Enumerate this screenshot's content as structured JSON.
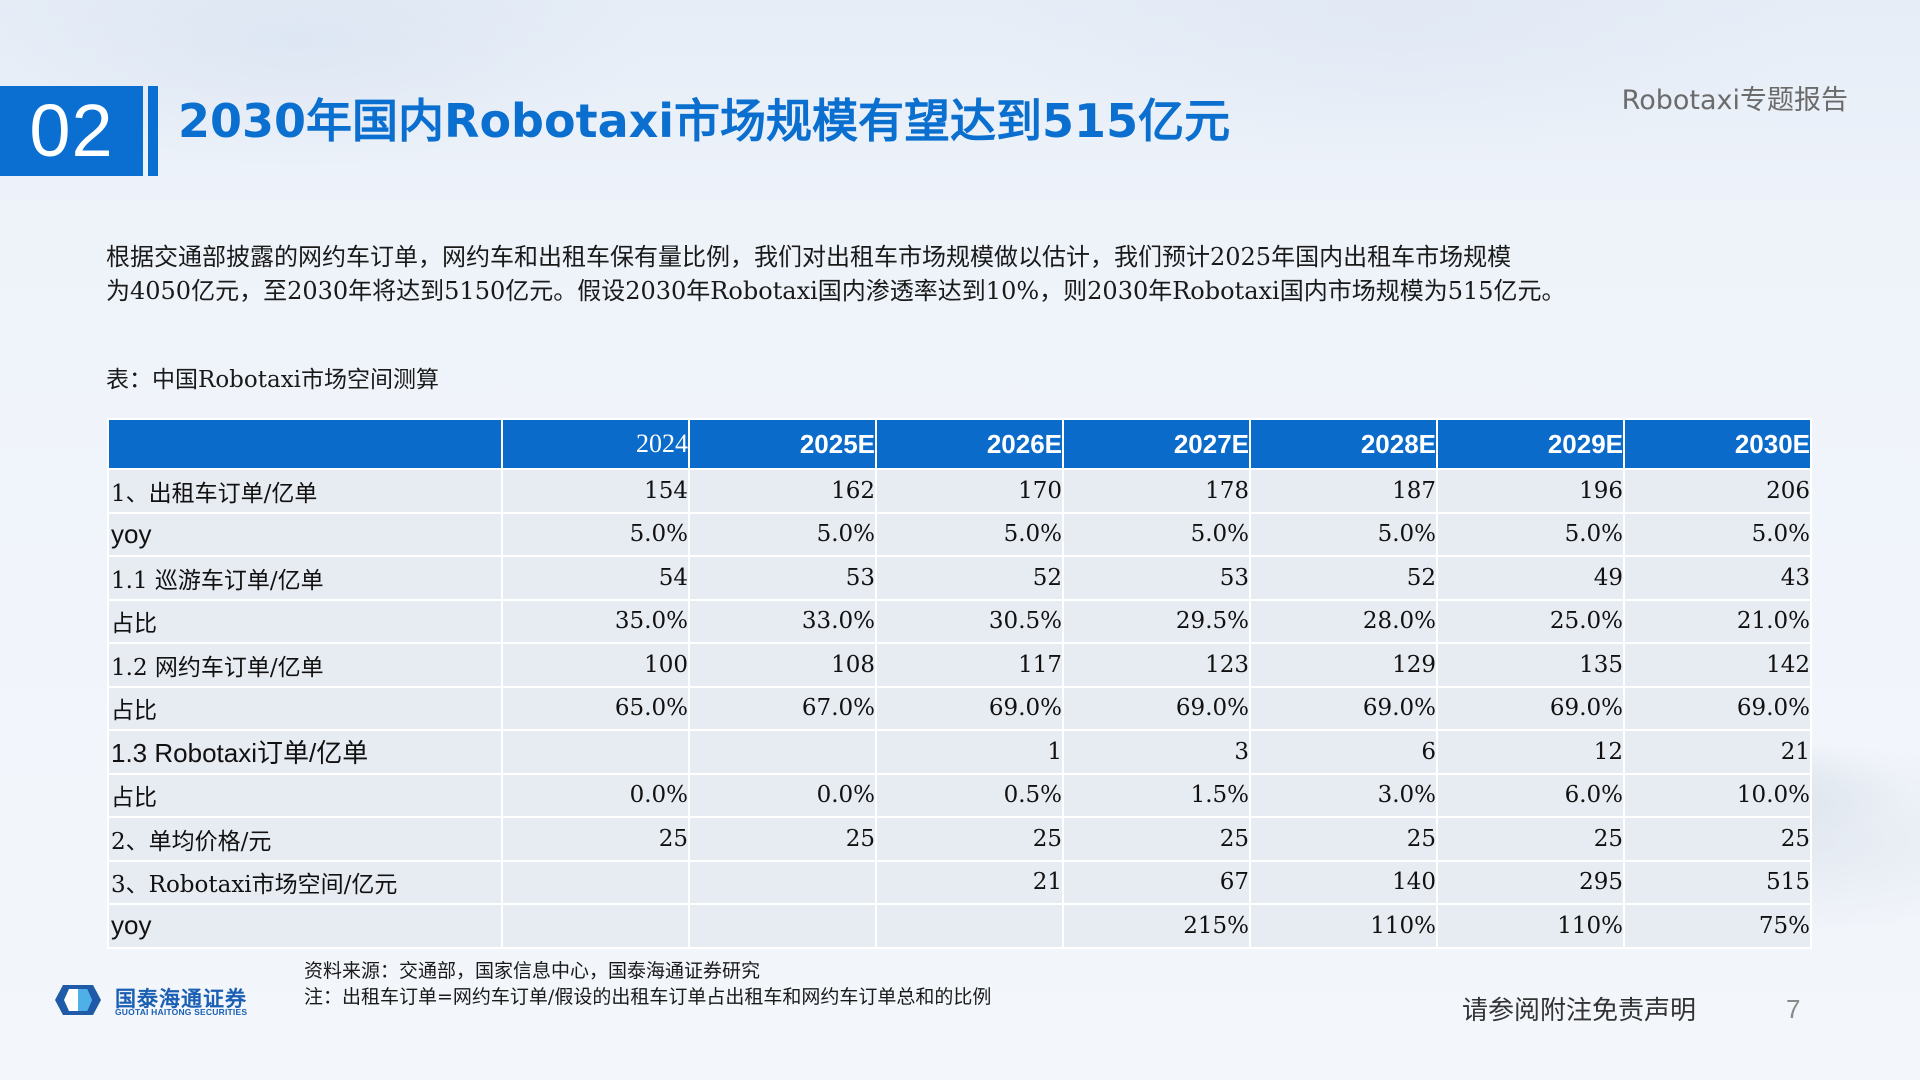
{
  "header": {
    "section_number": "02",
    "title": "2030年国内Robotaxi市场规模有望达到515亿元",
    "report_tag": "Robotaxi专题报告"
  },
  "intro": {
    "line1": "根据交通部披露的网约车订单，网约车和出租车保有量比例，我们对出租车市场规模做以估计，我们预计2025年国内出租车市场规模",
    "line2": "为4050亿元，至2030年将达到5150亿元。假设2030年Robotaxi国内渗透率达到10%，则2030年Robotaxi国内市场规模为515亿元。"
  },
  "table": {
    "caption": "表：中国Robotaxi市场空间测算",
    "columns": [
      "",
      "2024",
      "2025E",
      "2026E",
      "2027E",
      "2028E",
      "2029E",
      "2030E"
    ],
    "rows": [
      {
        "label": "1、出租车订单/亿单",
        "values": [
          "154",
          "162",
          "170",
          "178",
          "187",
          "196",
          "206"
        ]
      },
      {
        "label": "yoy",
        "values": [
          "5.0%",
          "5.0%",
          "5.0%",
          "5.0%",
          "5.0%",
          "5.0%",
          "5.0%"
        ]
      },
      {
        "label": "1.1 巡游车订单/亿单",
        "values": [
          "54",
          "53",
          "52",
          "53",
          "52",
          "49",
          "43"
        ]
      },
      {
        "label": "占比",
        "values": [
          "35.0%",
          "33.0%",
          "30.5%",
          "29.5%",
          "28.0%",
          "25.0%",
          "21.0%"
        ]
      },
      {
        "label": "1.2 网约车订单/亿单",
        "values": [
          "100",
          "108",
          "117",
          "123",
          "129",
          "135",
          "142"
        ]
      },
      {
        "label": "占比",
        "values": [
          "65.0%",
          "67.0%",
          "69.0%",
          "69.0%",
          "69.0%",
          "69.0%",
          "69.0%"
        ]
      },
      {
        "label": "1.3 Robotaxi订单/亿单",
        "values": [
          "",
          "",
          "1",
          "3",
          "6",
          "12",
          "21"
        ]
      },
      {
        "label": "占比",
        "values": [
          "0.0%",
          "0.0%",
          "0.5%",
          "1.5%",
          "3.0%",
          "6.0%",
          "10.0%"
        ]
      },
      {
        "label": "2、单均价格/元",
        "values": [
          "25",
          "25",
          "25",
          "25",
          "25",
          "25",
          "25"
        ]
      },
      {
        "label": "3、Robotaxi市场空间/亿元",
        "values": [
          "",
          "",
          "21",
          "67",
          "140",
          "295",
          "515"
        ]
      },
      {
        "label": "yoy",
        "values": [
          "",
          "",
          "",
          "215%",
          "110%",
          "110%",
          "75%"
        ]
      }
    ]
  },
  "footer": {
    "logo_cn": "国泰海通证券",
    "logo_en": "GUOTAI HAITONG SECURITIES",
    "source": "资料来源：交通部，国家信息中心，国泰海通证券研究",
    "note": "注：出租车订单=网约车订单/假设的出租车订单占出租车和网约车订单总和的比例",
    "disclaimer": "请参阅附注免责声明",
    "page_number": "7"
  },
  "colors": {
    "accent_blue": "#0a6fd0",
    "header_blue": "#0a6bcb",
    "row_bg": "#e7ebf2",
    "title_blue": "#0b6fcf"
  }
}
